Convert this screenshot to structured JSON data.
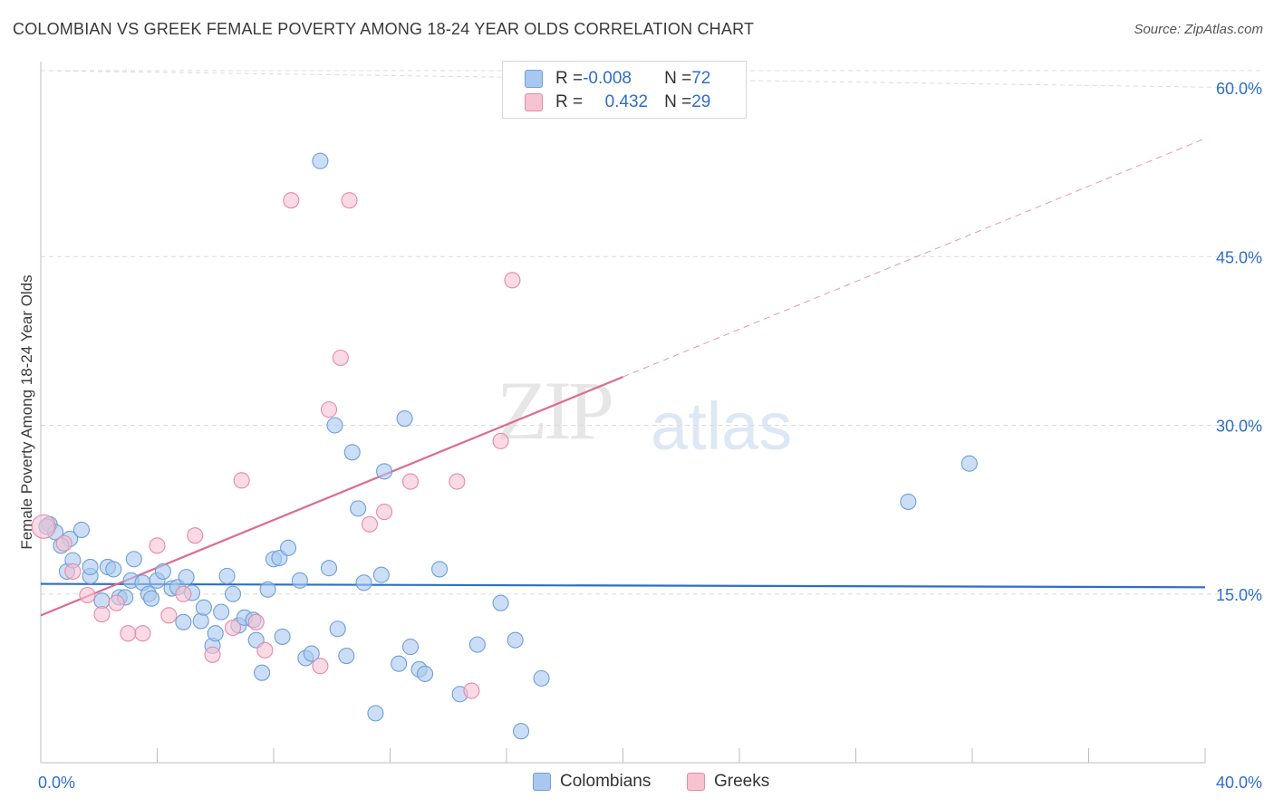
{
  "title": "COLOMBIAN VS GREEK FEMALE POVERTY AMONG 18-24 YEAR OLDS CORRELATION CHART",
  "source": "Source: ZipAtlas.com",
  "watermark": {
    "zip": "ZIP",
    "atlas": "atlas"
  },
  "legend": {
    "rows": [
      {
        "r_label": "R = ",
        "r_value": "-0.008",
        "n_label": "N = ",
        "n_value": "72",
        "color": "#a9c8ef",
        "border": "#6e9fd9"
      },
      {
        "r_label": "R = ",
        "r_value": "0.432",
        "n_label": "N = ",
        "n_value": "29",
        "color": "#f7c2d2",
        "border": "#e58aa8"
      }
    ]
  },
  "bottom_legend": [
    {
      "label": "Colombians",
      "color": "#a9c8ef",
      "border": "#6e9fd9"
    },
    {
      "label": "Greeks",
      "color": "#f7c2d2",
      "border": "#e58aa8"
    }
  ],
  "chart_data": {
    "type": "scatter",
    "title": "COLOMBIAN VS GREEK FEMALE POVERTY AMONG 18-24 YEAR OLDS CORRELATION CHART",
    "xlabel": "",
    "ylabel": "Female Poverty Among 18-24 Year Olds",
    "xlim": [
      0,
      40
    ],
    "ylim": [
      0,
      60
    ],
    "x_tick_labels": [
      "0.0%",
      "40.0%"
    ],
    "y_ticks": [
      15,
      30,
      45,
      60
    ],
    "y_tick_labels": [
      "15.0%",
      "30.0%",
      "45.0%",
      "60.0%"
    ],
    "grid": true,
    "legend_position": "top-center",
    "series": [
      {
        "name": "Colombians",
        "color": "#6e9fd9",
        "fill": "#a9c8ef",
        "trend": {
          "x": [
            0,
            40
          ],
          "y": [
            15.9,
            15.6
          ],
          "color": "#2c6fc7",
          "dashed_from": null
        },
        "points": [
          [
            0.3,
            21.2
          ],
          [
            0.5,
            20.5
          ],
          [
            1.0,
            19.9
          ],
          [
            1.4,
            20.7
          ],
          [
            0.9,
            17.0
          ],
          [
            1.1,
            18.0
          ],
          [
            1.7,
            16.6
          ],
          [
            1.7,
            17.4
          ],
          [
            2.1,
            14.4
          ],
          [
            2.3,
            17.4
          ],
          [
            2.5,
            17.2
          ],
          [
            2.7,
            14.7
          ],
          [
            2.9,
            14.7
          ],
          [
            3.1,
            16.2
          ],
          [
            3.2,
            18.1
          ],
          [
            3.5,
            16.0
          ],
          [
            3.7,
            15.0
          ],
          [
            3.8,
            14.6
          ],
          [
            4.0,
            16.2
          ],
          [
            4.2,
            17.0
          ],
          [
            4.5,
            15.5
          ],
          [
            4.7,
            15.6
          ],
          [
            4.9,
            12.5
          ],
          [
            5.0,
            16.5
          ],
          [
            5.2,
            15.1
          ],
          [
            5.5,
            12.6
          ],
          [
            5.6,
            13.8
          ],
          [
            5.9,
            10.4
          ],
          [
            6.0,
            11.5
          ],
          [
            6.2,
            13.4
          ],
          [
            6.4,
            16.6
          ],
          [
            6.6,
            15.0
          ],
          [
            6.8,
            12.2
          ],
          [
            7.0,
            12.9
          ],
          [
            7.3,
            12.7
          ],
          [
            7.4,
            10.9
          ],
          [
            7.6,
            8.0
          ],
          [
            7.8,
            15.4
          ],
          [
            8.0,
            18.1
          ],
          [
            8.2,
            18.2
          ],
          [
            8.5,
            19.1
          ],
          [
            8.3,
            11.2
          ],
          [
            8.9,
            16.2
          ],
          [
            9.1,
            9.3
          ],
          [
            9.3,
            9.7
          ],
          [
            9.6,
            53.5
          ],
          [
            9.9,
            17.3
          ],
          [
            10.1,
            30.0
          ],
          [
            10.2,
            11.9
          ],
          [
            10.5,
            9.5
          ],
          [
            10.7,
            27.6
          ],
          [
            10.9,
            22.6
          ],
          [
            11.1,
            16.0
          ],
          [
            11.5,
            4.4
          ],
          [
            11.7,
            16.7
          ],
          [
            11.8,
            25.9
          ],
          [
            12.3,
            8.8
          ],
          [
            12.5,
            30.6
          ],
          [
            12.7,
            10.3
          ],
          [
            13.0,
            8.3
          ],
          [
            13.2,
            7.9
          ],
          [
            13.7,
            17.2
          ],
          [
            14.4,
            6.1
          ],
          [
            15.0,
            10.5
          ],
          [
            15.8,
            14.2
          ],
          [
            16.3,
            10.9
          ],
          [
            16.5,
            2.8
          ],
          [
            17.2,
            7.5
          ],
          [
            29.8,
            23.2
          ],
          [
            31.9,
            26.6
          ],
          [
            0.2,
            21.0
          ],
          [
            0.7,
            19.3
          ]
        ]
      },
      {
        "name": "Greeks",
        "color": "#e58aa8",
        "fill": "#f7c2d2",
        "trend": {
          "x": [
            0,
            20,
            40
          ],
          "y": [
            13.1,
            34.3,
            55.5
          ],
          "color": "#de6a92",
          "dashed_from": 20
        },
        "points": [
          [
            0.1,
            21.0
          ],
          [
            0.8,
            19.5
          ],
          [
            1.1,
            17.0
          ],
          [
            1.6,
            14.9
          ],
          [
            2.1,
            13.2
          ],
          [
            2.6,
            14.2
          ],
          [
            3.0,
            11.5
          ],
          [
            3.5,
            11.5
          ],
          [
            4.0,
            19.3
          ],
          [
            4.4,
            13.1
          ],
          [
            4.9,
            15.0
          ],
          [
            5.3,
            20.2
          ],
          [
            5.9,
            9.6
          ],
          [
            6.6,
            12.0
          ],
          [
            6.9,
            25.1
          ],
          [
            7.4,
            12.5
          ],
          [
            7.7,
            10.0
          ],
          [
            8.6,
            50.0
          ],
          [
            9.6,
            8.6
          ],
          [
            9.9,
            31.4
          ],
          [
            10.3,
            36.0
          ],
          [
            10.6,
            50.0
          ],
          [
            11.3,
            21.2
          ],
          [
            11.8,
            22.3
          ],
          [
            12.7,
            25.0
          ],
          [
            14.3,
            25.0
          ],
          [
            14.8,
            6.4
          ],
          [
            15.8,
            28.6
          ],
          [
            16.2,
            42.9
          ]
        ]
      }
    ]
  }
}
